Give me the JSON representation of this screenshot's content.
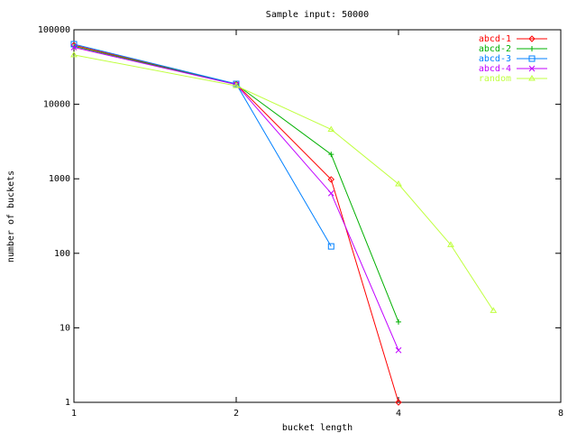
{
  "chart_data": {
    "type": "line",
    "title": "Sample input: 50000",
    "x_label": "bucket length",
    "y_label": "number of buckets",
    "x": [
      1,
      2,
      3,
      4,
      5,
      6
    ],
    "series": [
      {
        "name": "abcd-1",
        "color": "#ff0000",
        "marker": "diamond",
        "values": [
          62000,
          18700,
          980,
          1,
          null,
          null
        ]
      },
      {
        "name": "abcd-2",
        "color": "#00b000",
        "marker": "plus",
        "values": [
          60000,
          18500,
          2130,
          12,
          null,
          null
        ]
      },
      {
        "name": "abcd-3",
        "color": "#0080ff",
        "marker": "square",
        "values": [
          64000,
          18800,
          124,
          null,
          null,
          null
        ]
      },
      {
        "name": "abcd-4",
        "color": "#c000ff",
        "marker": "cross",
        "values": [
          58000,
          18400,
          640,
          5,
          null,
          null
        ]
      },
      {
        "name": "random",
        "color": "#c0ff40",
        "marker": "triangle",
        "values": [
          46000,
          17700,
          4600,
          850,
          130,
          17
        ]
      }
    ],
    "xlim": [
      1,
      8
    ],
    "xticks": [
      1,
      2,
      4,
      8
    ],
    "xscale": "log",
    "ylim": [
      1,
      100000
    ],
    "yticks": [
      1,
      10,
      100,
      1000,
      10000,
      100000
    ],
    "yscale": "log",
    "legend": "top-right"
  }
}
